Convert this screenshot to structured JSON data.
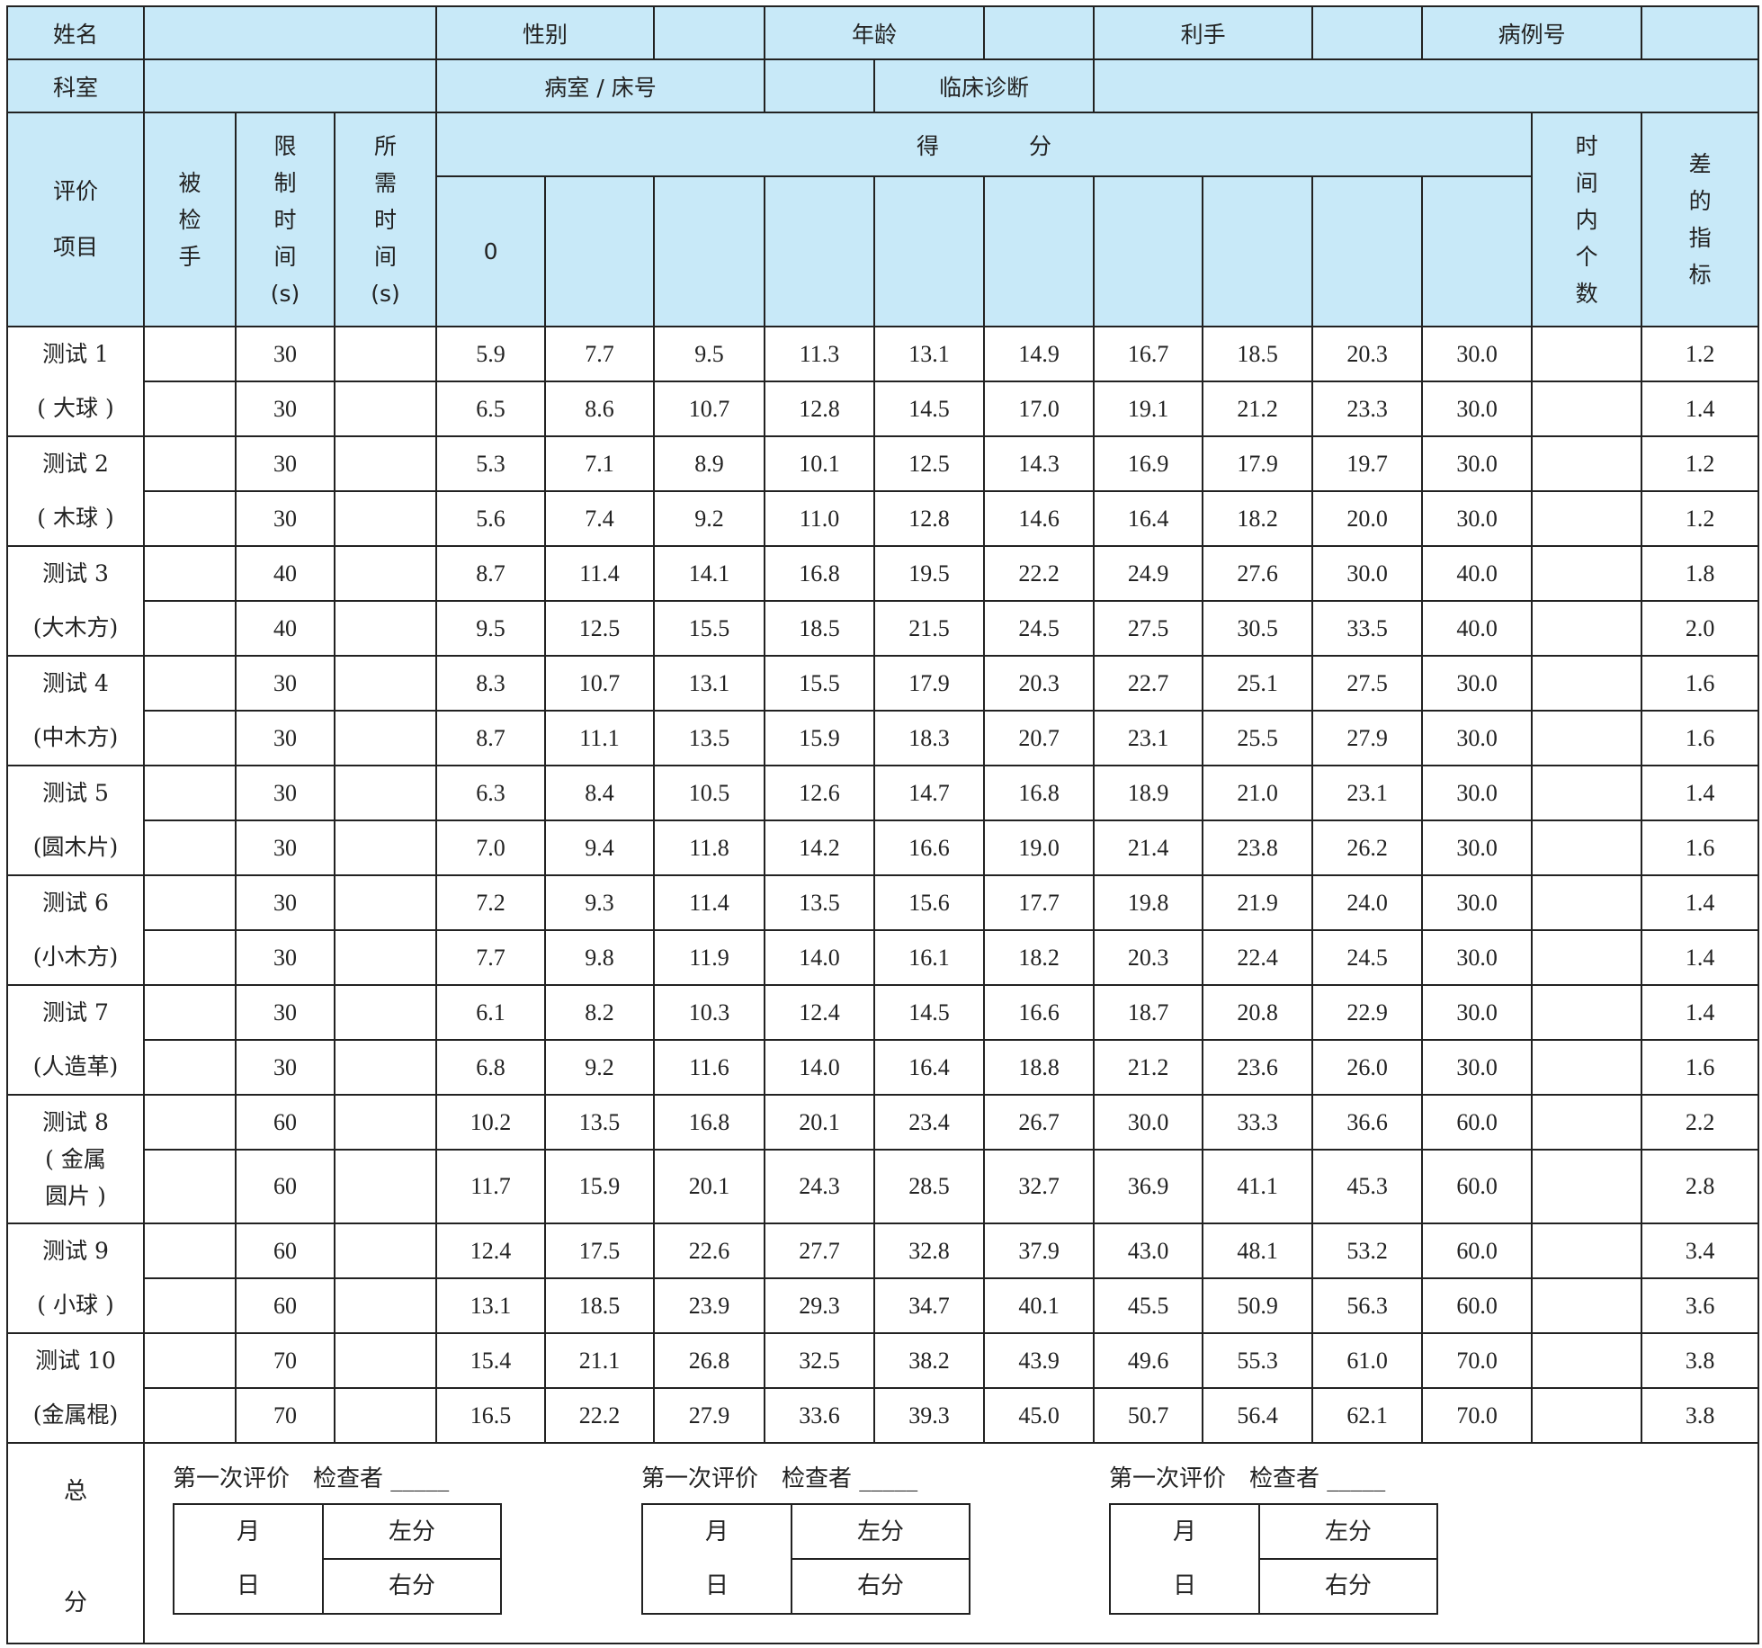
{
  "header": {
    "name": "姓名",
    "sex": "性别",
    "age": "年龄",
    "hand": "利手",
    "case_no": "病例号",
    "dept": "科室",
    "ward_bed": "病室 / 床号",
    "diagnosis": "临床诊断"
  },
  "columns": {
    "item": [
      "评价",
      "项目"
    ],
    "hand": [
      "被",
      "检",
      "手"
    ],
    "limit": [
      "限",
      "制",
      "时",
      "间",
      "(s)"
    ],
    "needed": [
      "所",
      "需",
      "时",
      "间",
      "(s)"
    ],
    "score": "得　　　　分",
    "score_zero": "0",
    "count": [
      "时",
      "间",
      "内",
      "个",
      "数"
    ],
    "diff": [
      "差",
      "的",
      "指",
      "标"
    ]
  },
  "rows": [
    {
      "label": [
        "测试 1",
        "( 大球 )"
      ],
      "lim": [
        "30",
        "30"
      ],
      "vals": [
        [
          "5.9",
          "7.7",
          "9.5",
          "11.3",
          "13.1",
          "14.9",
          "16.7",
          "18.5",
          "20.3",
          "30.0"
        ],
        [
          "6.5",
          "8.6",
          "10.7",
          "12.8",
          "14.5",
          "17.0",
          "19.1",
          "21.2",
          "23.3",
          "30.0"
        ]
      ],
      "diff": [
        "1.2",
        "1.4"
      ]
    },
    {
      "label": [
        "测试 2",
        "( 木球 )"
      ],
      "lim": [
        "30",
        "30"
      ],
      "vals": [
        [
          "5.3",
          "7.1",
          "8.9",
          "10.1",
          "12.5",
          "14.3",
          "16.9",
          "17.9",
          "19.7",
          "30.0"
        ],
        [
          "5.6",
          "7.4",
          "9.2",
          "11.0",
          "12.8",
          "14.6",
          "16.4",
          "18.2",
          "20.0",
          "30.0"
        ]
      ],
      "diff": [
        "1.2",
        "1.2"
      ]
    },
    {
      "label": [
        "测试 3",
        "(大木方)"
      ],
      "lim": [
        "40",
        "40"
      ],
      "vals": [
        [
          "8.7",
          "11.4",
          "14.1",
          "16.8",
          "19.5",
          "22.2",
          "24.9",
          "27.6",
          "30.0",
          "40.0"
        ],
        [
          "9.5",
          "12.5",
          "15.5",
          "18.5",
          "21.5",
          "24.5",
          "27.5",
          "30.5",
          "33.5",
          "40.0"
        ]
      ],
      "diff": [
        "1.8",
        "2.0"
      ]
    },
    {
      "label": [
        "测试 4",
        "(中木方)"
      ],
      "lim": [
        "30",
        "30"
      ],
      "vals": [
        [
          "8.3",
          "10.7",
          "13.1",
          "15.5",
          "17.9",
          "20.3",
          "22.7",
          "25.1",
          "27.5",
          "30.0"
        ],
        [
          "8.7",
          "11.1",
          "13.5",
          "15.9",
          "18.3",
          "20.7",
          "23.1",
          "25.5",
          "27.9",
          "30.0"
        ]
      ],
      "diff": [
        "1.6",
        "1.6"
      ]
    },
    {
      "label": [
        "测试 5",
        "(圆木片)"
      ],
      "lim": [
        "30",
        "30"
      ],
      "vals": [
        [
          "6.3",
          "8.4",
          "10.5",
          "12.6",
          "14.7",
          "16.8",
          "18.9",
          "21.0",
          "23.1",
          "30.0"
        ],
        [
          "7.0",
          "9.4",
          "11.8",
          "14.2",
          "16.6",
          "19.0",
          "21.4",
          "23.8",
          "26.2",
          "30.0"
        ]
      ],
      "diff": [
        "1.4",
        "1.6"
      ]
    },
    {
      "label": [
        "测试 6",
        "(小木方)"
      ],
      "lim": [
        "30",
        "30"
      ],
      "vals": [
        [
          "7.2",
          "9.3",
          "11.4",
          "13.5",
          "15.6",
          "17.7",
          "19.8",
          "21.9",
          "24.0",
          "30.0"
        ],
        [
          "7.7",
          "9.8",
          "11.9",
          "14.0",
          "16.1",
          "18.2",
          "20.3",
          "22.4",
          "24.5",
          "30.0"
        ]
      ],
      "diff": [
        "1.4",
        "1.4"
      ]
    },
    {
      "label": [
        "测试 7",
        "(人造革)"
      ],
      "lim": [
        "30",
        "30"
      ],
      "vals": [
        [
          "6.1",
          "8.2",
          "10.3",
          "12.4",
          "14.5",
          "16.6",
          "18.7",
          "20.8",
          "22.9",
          "30.0"
        ],
        [
          "6.8",
          "9.2",
          "11.6",
          "14.0",
          "16.4",
          "18.8",
          "21.2",
          "23.6",
          "26.0",
          "30.0"
        ]
      ],
      "diff": [
        "1.4",
        "1.6"
      ]
    },
    {
      "label": [
        "测试 8",
        "( 金属",
        "圆片 )"
      ],
      "lim": [
        "60",
        "60"
      ],
      "vals": [
        [
          "10.2",
          "13.5",
          "16.8",
          "20.1",
          "23.4",
          "26.7",
          "30.0",
          "33.3",
          "36.6",
          "60.0"
        ],
        [
          "11.7",
          "15.9",
          "20.1",
          "24.3",
          "28.5",
          "32.7",
          "36.9",
          "41.1",
          "45.3",
          "60.0"
        ]
      ],
      "diff": [
        "2.2",
        "2.8"
      ]
    },
    {
      "label": [
        "测试 9",
        "( 小球 )"
      ],
      "lim": [
        "60",
        "60"
      ],
      "vals": [
        [
          "12.4",
          "17.5",
          "22.6",
          "27.7",
          "32.8",
          "37.9",
          "43.0",
          "48.1",
          "53.2",
          "60.0"
        ],
        [
          "13.1",
          "18.5",
          "23.9",
          "29.3",
          "34.7",
          "40.1",
          "45.5",
          "50.9",
          "56.3",
          "60.0"
        ]
      ],
      "diff": [
        "3.4",
        "3.6"
      ]
    },
    {
      "label": [
        "测试 10",
        "(金属棍)"
      ],
      "lim": [
        "70",
        "70"
      ],
      "vals": [
        [
          "15.4",
          "21.1",
          "26.8",
          "32.5",
          "38.2",
          "43.9",
          "49.6",
          "55.3",
          "61.0",
          "70.0"
        ],
        [
          "16.5",
          "22.2",
          "27.9",
          "33.6",
          "39.3",
          "45.0",
          "50.7",
          "56.4",
          "62.1",
          "70.0"
        ]
      ],
      "diff": [
        "3.8",
        "3.8"
      ]
    }
  ],
  "total": {
    "label": [
      "总",
      "分"
    ],
    "blocks": [
      {
        "caption": "第一次评价　检查者 _____",
        "month": "月",
        "day": "日",
        "left": "左分",
        "right": "右分"
      },
      {
        "caption": "第一次评价　检查者 _____",
        "month": "月",
        "day": "日",
        "left": "左分",
        "right": "右分"
      },
      {
        "caption": "第一次评价　检查者 _____",
        "month": "月",
        "day": "日",
        "left": "左分",
        "right": "右分"
      }
    ]
  },
  "colors": {
    "header_bg": "#c8e9f8",
    "border": "#222222"
  }
}
